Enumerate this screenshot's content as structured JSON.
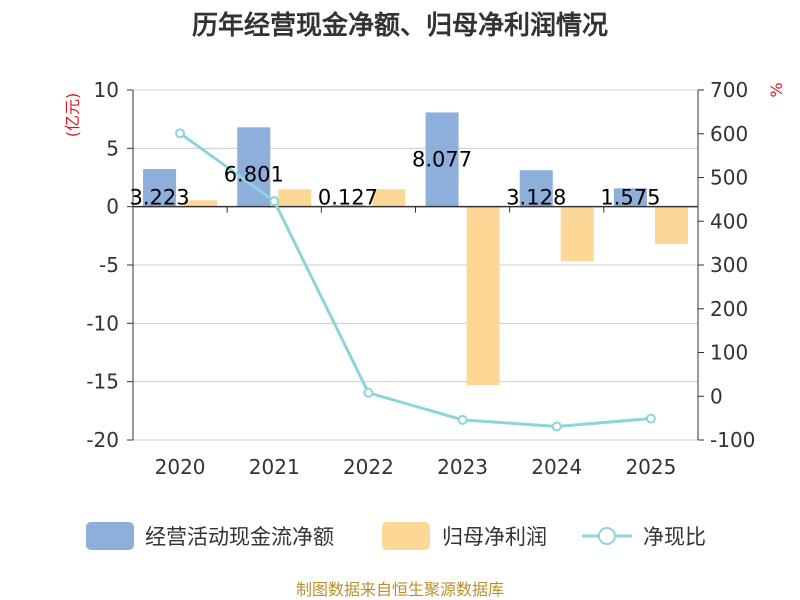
{
  "chart_data": {
    "type": "bar",
    "title": "历年经营现金净额、归母净利润情况",
    "categories": [
      "2020",
      "2021",
      "2022",
      "2023",
      "2024",
      "2025"
    ],
    "y_left": {
      "unit_label": "(亿元)",
      "range": [
        -20,
        10
      ],
      "ticks": [
        "10",
        "5",
        "0",
        "-5",
        "-10",
        "-15",
        "-20"
      ]
    },
    "y_right": {
      "unit_label": "%",
      "range": [
        -100,
        700
      ],
      "ticks": [
        "700",
        "600",
        "500",
        "400",
        "300",
        "200",
        "100",
        "0",
        "-100"
      ]
    },
    "series": [
      {
        "name": "经营活动现金流净额",
        "type": "bar",
        "axis": "left",
        "color": "#8eaedb",
        "values": [
          3.223,
          6.801,
          0.127,
          8.077,
          3.128,
          1.575
        ],
        "labels": [
          "3.223",
          "6.801",
          "0.127",
          "8.077",
          "3.128",
          "1.575"
        ]
      },
      {
        "name": "归母净利润",
        "type": "bar",
        "axis": "left",
        "color": "#fdd795",
        "values": [
          0.55,
          1.5,
          1.5,
          -15.3,
          -4.7,
          -3.2
        ]
      },
      {
        "name": "净现比",
        "type": "line",
        "axis": "right",
        "color": "#8dd5d8",
        "values": [
          601,
          446,
          8,
          -54,
          -69,
          -51
        ]
      }
    ],
    "source": "制图数据来自恒生聚源数据库"
  }
}
